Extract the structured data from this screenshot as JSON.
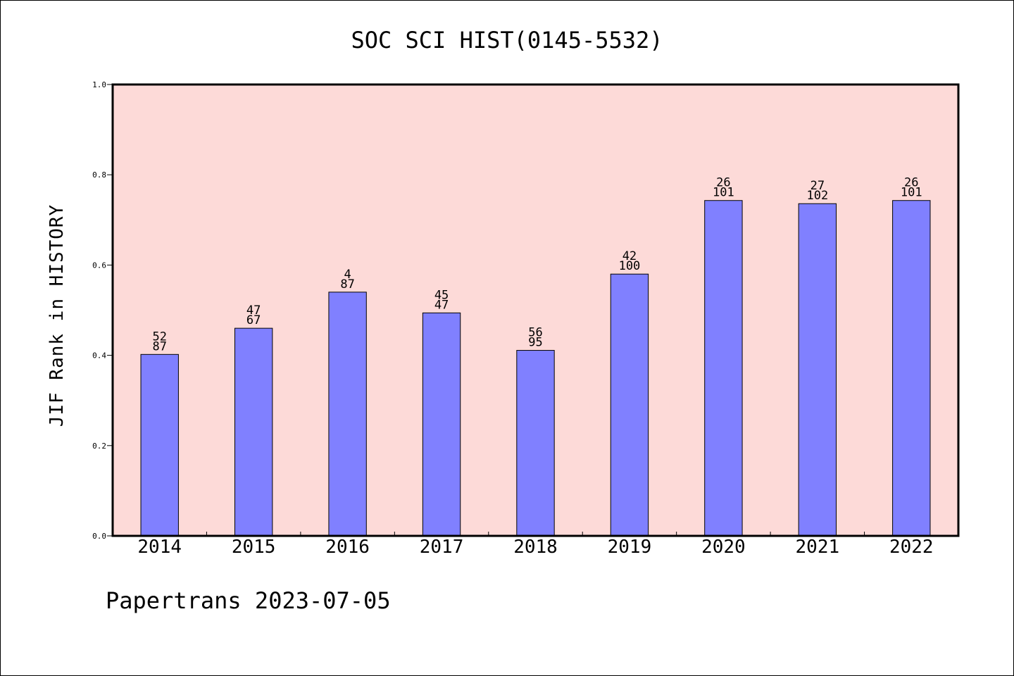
{
  "chart_data": {
    "type": "bar",
    "title": "SOC SCI HIST(0145-5532)",
    "xlabel": "",
    "ylabel": "JIF Rank in HISTORY",
    "categories": [
      "2014",
      "2015",
      "2016",
      "2017",
      "2018",
      "2019",
      "2020",
      "2021",
      "2022"
    ],
    "values": [
      0.402,
      0.46,
      0.54,
      0.494,
      0.411,
      0.58,
      0.743,
      0.736,
      0.743
    ],
    "bar_labels_top": [
      "52",
      "47",
      "4",
      "45",
      "56",
      "42",
      "26",
      "27",
      "26"
    ],
    "bar_labels_bottom": [
      "87",
      "67",
      "87",
      "47",
      "95",
      "100",
      "101",
      "102",
      "101"
    ],
    "ylim": [
      0,
      1.0
    ],
    "yticks": [
      "0.0",
      "0.2",
      "0.4",
      "0.6",
      "0.8",
      "1.0"
    ],
    "grid": false,
    "colors": {
      "plot_background": "#fddad8",
      "bar_fill": "#8080ff",
      "bar_edge": "#000000"
    }
  },
  "footer": "Papertrans 2023-07-05"
}
